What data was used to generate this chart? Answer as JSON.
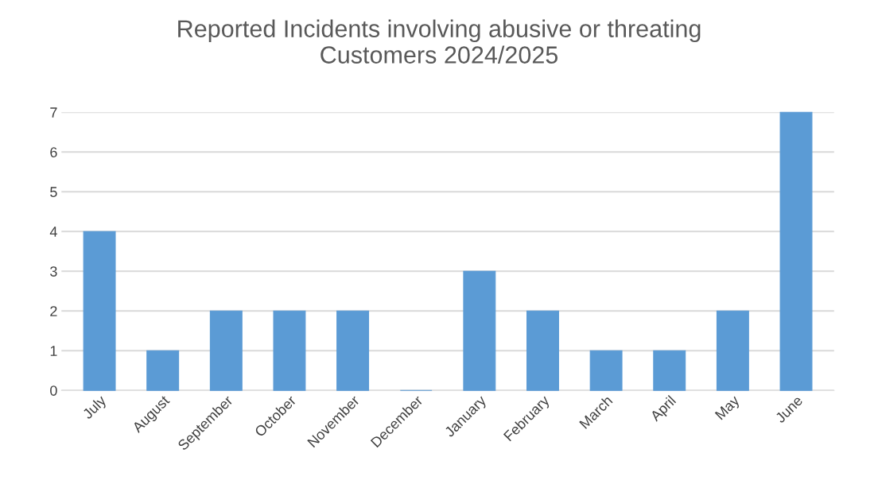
{
  "chart_data": {
    "type": "bar",
    "title": "Reported Incidents involving abusive or threating\nCustomers 2024/2025",
    "categories": [
      "July",
      "August",
      "September",
      "October",
      "November",
      "December",
      "January",
      "February",
      "March",
      "April",
      "May",
      "June"
    ],
    "values": [
      4,
      1,
      2,
      2,
      2,
      0,
      3,
      2,
      1,
      1,
      2,
      7
    ],
    "color": "#5b9bd5",
    "ylim": [
      0,
      7
    ],
    "yticks": [
      0,
      1,
      2,
      3,
      4,
      5,
      6,
      7
    ],
    "grid": "y"
  }
}
